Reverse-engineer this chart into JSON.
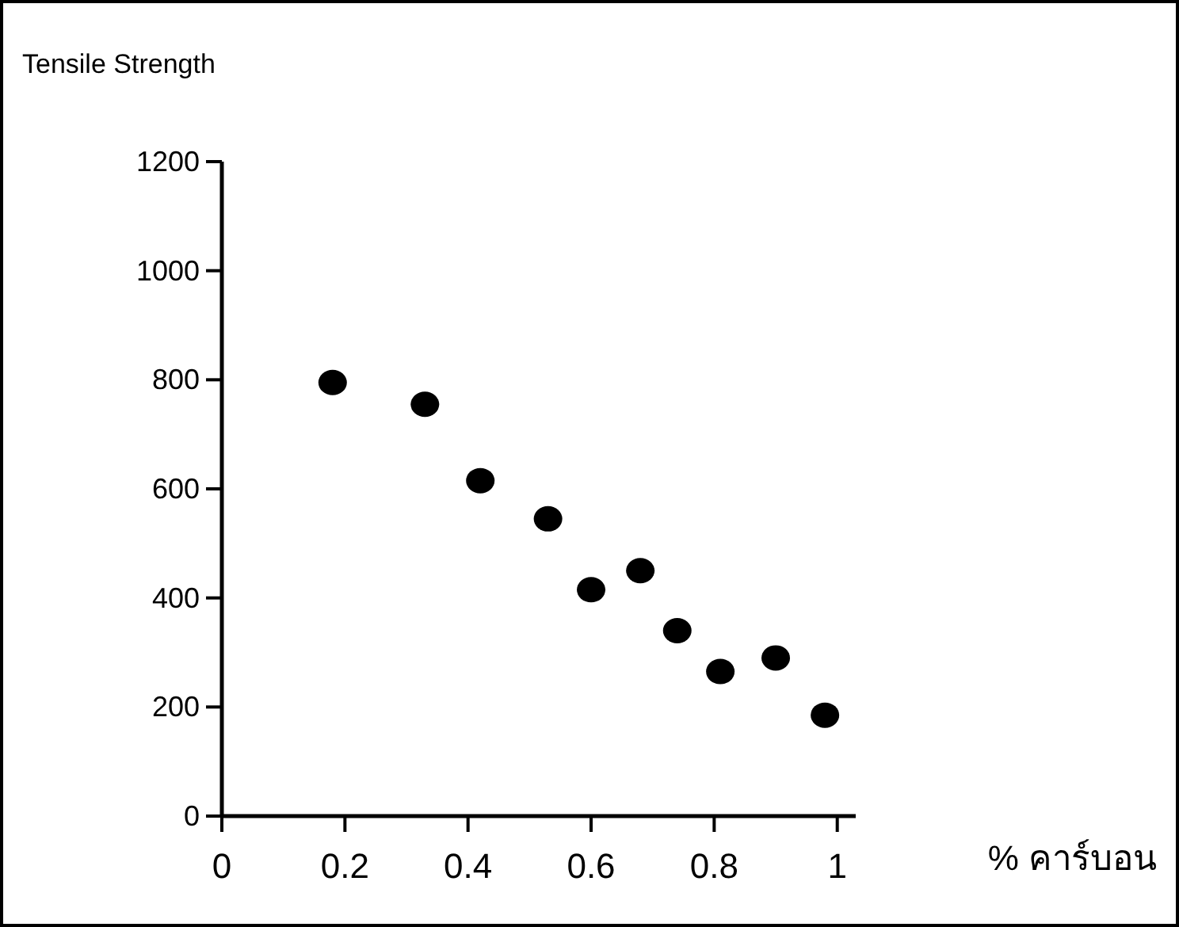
{
  "chart_data": {
    "type": "scatter",
    "ylabel": "Tensile Strength",
    "xlabel": "% คาร์บอน",
    "x": [
      0.18,
      0.33,
      0.42,
      0.53,
      0.6,
      0.68,
      0.74,
      0.81,
      0.9,
      0.98
    ],
    "values": [
      795,
      755,
      615,
      545,
      415,
      450,
      340,
      265,
      290,
      185
    ],
    "color": "#000000",
    "marker": "circle",
    "grid": false,
    "xlim": [
      0,
      1.03
    ],
    "ylim": [
      0,
      1200
    ],
    "xticks": [
      0,
      0.2,
      0.4,
      0.6,
      0.8,
      1
    ],
    "yticks": [
      0,
      200,
      400,
      600,
      800,
      1000,
      1200
    ]
  }
}
